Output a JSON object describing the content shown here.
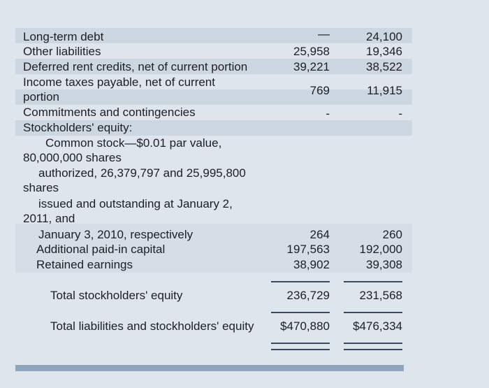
{
  "rows": [
    {
      "label": "Long-term debt",
      "values": [
        "—",
        "24,100"
      ]
    },
    {
      "label": "Other liabilities",
      "values": [
        "25,958",
        "19,346"
      ]
    },
    {
      "label": "Deferred rent credits, net of current portion",
      "values": [
        "39,221",
        "38,522"
      ]
    },
    {
      "label": "Income taxes payable, net of current portion",
      "values": [
        "769",
        "11,915"
      ]
    },
    {
      "label": "Commitments and contingencies",
      "values": [
        "-",
        "-"
      ]
    },
    {
      "label": "Stockholders' equity:",
      "values": []
    },
    {
      "label": "Common stock—$0.01 par value, 80,000,000 shares",
      "values": []
    },
    {
      "label": "authorized, 26,379,797 and 25,995,800 shares",
      "values": []
    },
    {
      "label": "issued and outstanding at January 2, 2011, and",
      "values": []
    },
    {
      "label": "January 3, 2010, respectively",
      "values": [
        "264",
        "260"
      ]
    },
    {
      "label": "Additional paid-in capital",
      "values": [
        "197,563",
        "192,000"
      ]
    },
    {
      "label": "Retained earnings",
      "values": [
        "38,902",
        "39,308"
      ]
    },
    {
      "label": "Total stockholders' equity",
      "values": [
        "236,729",
        "231,568"
      ]
    },
    {
      "label": "Total liabilities and stockholders' equity",
      "values": [
        "$470,880",
        "$476,334"
      ]
    }
  ]
}
